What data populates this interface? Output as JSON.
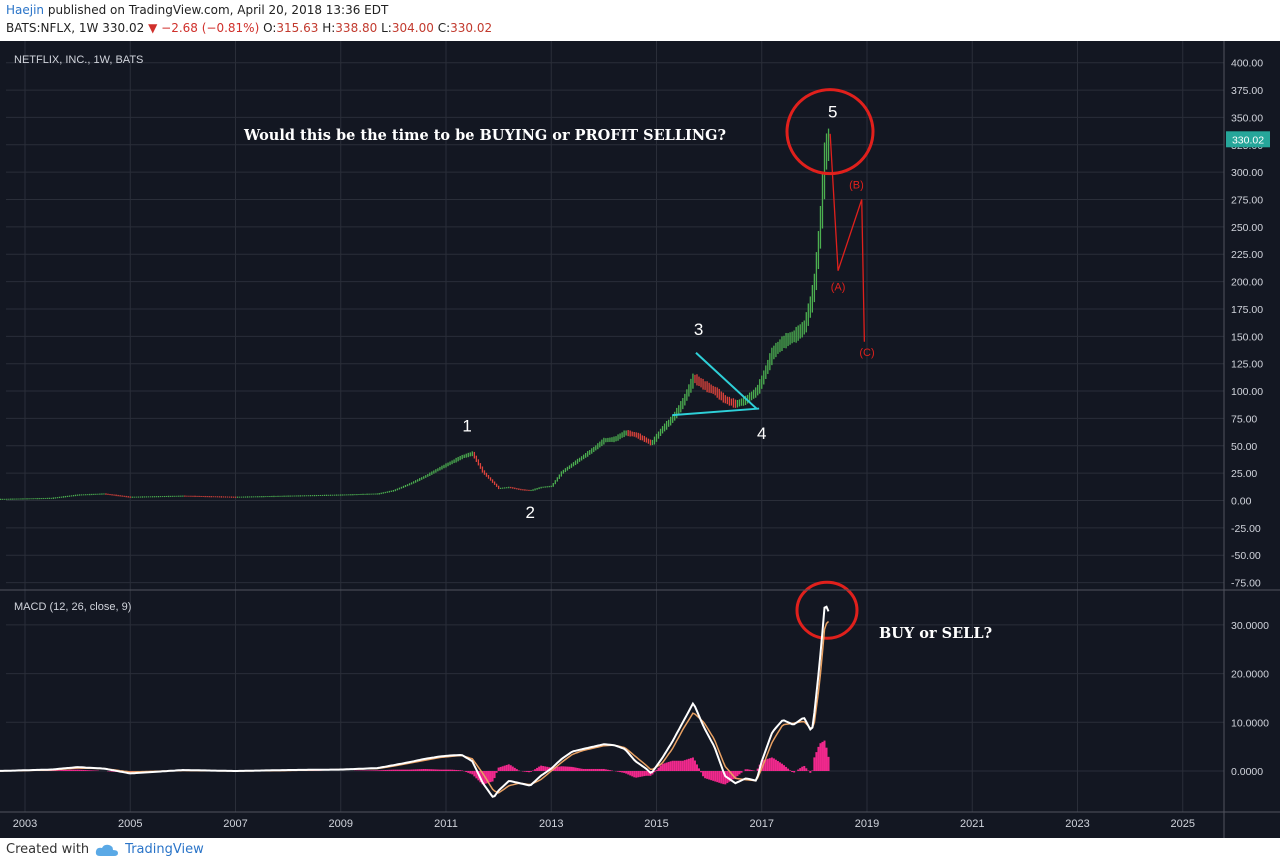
{
  "header": {
    "author": "Haejin",
    "published_text": "published on TradingView.com, April 20, 2018 13:36 EDT",
    "symbol": "BATS:NFLX, 1W",
    "last": "330.02",
    "change": "−2.68 (−0.81%)",
    "open_label": "O:",
    "open": "315.63",
    "high_label": "H:",
    "high": "338.80",
    "low_label": "L:",
    "low": "304.00",
    "close_label": "C:",
    "close": "330.02"
  },
  "colors": {
    "background": "#131722",
    "grid": "#2a2e39",
    "up": "#4caf50",
    "down": "#e0443c",
    "annotation": "#e0201c",
    "triangle": "#2ed0d8",
    "macd_line": "#ffffff",
    "signal_line": "#e8a062",
    "histogram": "#f0288c"
  },
  "chart_data": [
    {
      "type": "line",
      "title": "NETFLIX, INC., 1W, BATS",
      "x_tick_labels": [
        "2003",
        "2005",
        "2007",
        "2009",
        "2011",
        "2013",
        "2015",
        "2017",
        "2019",
        "2021",
        "2023",
        "2025"
      ],
      "y_tick_labels": [
        "400.00",
        "375.00",
        "350.00",
        "325.00",
        "300.00",
        "275.00",
        "250.00",
        "225.00",
        "200.00",
        "175.00",
        "150.00",
        "125.00",
        "100.00",
        "75.00",
        "50.00",
        "25.00",
        "0.00",
        "-25.00",
        "-50.00",
        "-75.00"
      ],
      "ylim": [
        -80,
        410
      ],
      "last_price": 330.02,
      "last_price_label": "330.02",
      "series": [
        {
          "x": [
            2002.5,
            2003.5,
            2004.0,
            2004.5,
            2005.0,
            2006.0,
            2007.0,
            2008.0,
            2009.0,
            2009.7,
            2010.0,
            2010.3,
            2010.6,
            2010.9,
            2011.1,
            2011.3,
            2011.5,
            2011.7,
            2011.9,
            2012.0,
            2012.2,
            2012.4,
            2012.6,
            2012.8,
            2013.0,
            2013.2,
            2013.4,
            2013.6,
            2013.8,
            2014.0,
            2014.2,
            2014.4,
            2014.6,
            2014.8,
            2014.9,
            2015.1,
            2015.3,
            2015.5,
            2015.7,
            2015.9,
            2016.1,
            2016.3,
            2016.5,
            2016.7,
            2016.9,
            2017.0,
            2017.2,
            2017.4,
            2017.6,
            2017.8,
            2017.95,
            2018.0,
            2018.1,
            2018.2,
            2018.3
          ],
          "y": [
            1,
            2,
            5,
            6,
            3,
            4,
            3,
            4,
            5,
            6,
            9,
            15,
            22,
            30,
            35,
            40,
            43,
            26,
            16,
            11,
            12,
            10,
            9,
            12,
            13,
            26,
            33,
            40,
            47,
            55,
            56,
            62,
            60,
            55,
            52,
            65,
            75,
            90,
            112,
            105,
            100,
            92,
            88,
            92,
            100,
            110,
            135,
            145,
            150,
            158,
            185,
            200,
            250,
            320,
            330
          ]
        }
      ],
      "wave_labels": [
        "1",
        "2",
        "3",
        "4",
        "5"
      ],
      "correction_labels": [
        "(A)",
        "(B)",
        "(C)"
      ],
      "correction_path": {
        "x": [
          2018.3,
          2018.45,
          2018.9,
          2018.95
        ],
        "y": [
          335,
          210,
          275,
          145
        ]
      },
      "annotation": "Would this be the time to be BUYING or PROFIT SELLING?"
    },
    {
      "type": "line",
      "title": "MACD (12, 26, close, 9)",
      "y_tick_labels": [
        "30.0000",
        "20.0000",
        "10.0000",
        "0.0000"
      ],
      "ylim": [
        -6.5,
        36
      ],
      "series": [
        {
          "name": "MACD",
          "x": [
            2002.5,
            2003.5,
            2004.0,
            2004.5,
            2005.0,
            2006.0,
            2007.0,
            2008.0,
            2009.0,
            2009.7,
            2010.0,
            2010.3,
            2010.6,
            2010.9,
            2011.1,
            2011.3,
            2011.5,
            2011.7,
            2011.9,
            2012.0,
            2012.2,
            2012.4,
            2012.6,
            2012.8,
            2013.0,
            2013.2,
            2013.4,
            2013.6,
            2013.8,
            2014.0,
            2014.2,
            2014.4,
            2014.6,
            2014.8,
            2014.9,
            2015.1,
            2015.3,
            2015.5,
            2015.7,
            2015.9,
            2016.1,
            2016.3,
            2016.5,
            2016.7,
            2016.9,
            2017.0,
            2017.2,
            2017.4,
            2017.6,
            2017.8,
            2017.95,
            2018.0,
            2018.1,
            2018.2,
            2018.3
          ],
          "y": [
            0,
            0.3,
            0.8,
            0.5,
            -0.5,
            0.2,
            0,
            0.2,
            0.3,
            0.6,
            1.2,
            1.8,
            2.5,
            3.0,
            3.2,
            3.3,
            2.0,
            -2.5,
            -5.5,
            -4.0,
            -2.0,
            -2.5,
            -3.0,
            -1.0,
            0.5,
            2.5,
            4.0,
            4.5,
            5.0,
            5.5,
            5.3,
            4.5,
            2.0,
            0.5,
            -0.5,
            2.5,
            6.0,
            10.0,
            14.0,
            9.0,
            5.0,
            -1.0,
            -2.5,
            -1.5,
            -2.0,
            2.0,
            8.0,
            10.5,
            9.5,
            11.0,
            8.0,
            12.0,
            22.0,
            34.5,
            32.0
          ]
        },
        {
          "name": "Signal",
          "x": [
            2002.5,
            2003.5,
            2004.0,
            2004.5,
            2005.0,
            2006.0,
            2007.0,
            2008.0,
            2009.0,
            2009.7,
            2010.0,
            2010.3,
            2010.6,
            2010.9,
            2011.1,
            2011.3,
            2011.5,
            2011.7,
            2011.9,
            2012.0,
            2012.2,
            2012.4,
            2012.6,
            2012.8,
            2013.0,
            2013.2,
            2013.4,
            2013.6,
            2013.8,
            2014.0,
            2014.2,
            2014.4,
            2014.6,
            2014.8,
            2014.9,
            2015.1,
            2015.3,
            2015.5,
            2015.7,
            2015.9,
            2016.1,
            2016.3,
            2016.5,
            2016.7,
            2016.9,
            2017.0,
            2017.2,
            2017.4,
            2017.6,
            2017.8,
            2017.95,
            2018.0,
            2018.1,
            2018.2,
            2018.3
          ],
          "y": [
            0,
            0.2,
            0.6,
            0.5,
            -0.2,
            0.1,
            0,
            0.1,
            0.3,
            0.5,
            1.0,
            1.6,
            2.2,
            2.8,
            3.0,
            3.2,
            2.5,
            -0.5,
            -4.0,
            -4.5,
            -3.0,
            -2.5,
            -2.8,
            -1.8,
            0,
            1.8,
            3.4,
            4.2,
            4.7,
            5.2,
            5.3,
            4.8,
            3.0,
            1.2,
            0.2,
            1.5,
            4.5,
            8.5,
            12.0,
            10.0,
            6.5,
            1.0,
            -1.5,
            -1.8,
            -2.0,
            0.5,
            6.0,
            9.5,
            9.8,
            10.2,
            8.5,
            10.0,
            18.0,
            30.0,
            31.0
          ]
        }
      ],
      "annotation": "BUY or SELL?"
    }
  ],
  "footer": {
    "created_with": "Created with",
    "brand": "TradingView"
  }
}
